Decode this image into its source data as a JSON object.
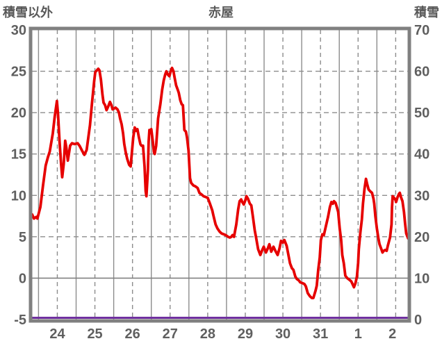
{
  "header": {
    "left_axis_title": "積雪以外",
    "chart_title": "赤屋",
    "right_axis_title": "積雪"
  },
  "chart_data": {
    "type": "line",
    "title": "赤屋",
    "left_axis": {
      "label": "積雪以外",
      "min": -5,
      "max": 30,
      "ticks": [
        30,
        25,
        20,
        15,
        10,
        5,
        0,
        -5
      ]
    },
    "right_axis": {
      "label": "積雪",
      "min": 0,
      "max": 70,
      "ticks": [
        70,
        60,
        50,
        40,
        30,
        20,
        10,
        0
      ]
    },
    "x_axis": {
      "day_labels": [
        "24",
        "25",
        "26",
        "27",
        "28",
        "29",
        "30",
        "31",
        "1",
        "2"
      ],
      "start_offset_days": -0.174,
      "span_days": 10,
      "solid_lines_at_day_boundaries": true,
      "dashed_lines_at_midday": true
    },
    "grid": {
      "horizontal_dashed_at": [
        25,
        20,
        15,
        10,
        5
      ],
      "horizontal_solid_at": [
        0
      ],
      "grid_on": true
    },
    "legend": "none",
    "series": [
      {
        "name": "main-line",
        "axis": "left",
        "color": "#e60000",
        "width": 3.8,
        "points": [
          [
            -0.17,
            7.7
          ],
          [
            -0.12,
            7.2
          ],
          [
            -0.06,
            7.4
          ],
          [
            -0.03,
            7.2
          ],
          [
            0.05,
            8.6
          ],
          [
            0.12,
            11.2
          ],
          [
            0.19,
            13.6
          ],
          [
            0.25,
            14.6
          ],
          [
            0.3,
            15.3
          ],
          [
            0.38,
            17.5
          ],
          [
            0.43,
            19.5
          ],
          [
            0.49,
            21.4
          ],
          [
            0.52,
            19.8
          ],
          [
            0.56,
            16.5
          ],
          [
            0.6,
            13.8
          ],
          [
            0.63,
            12.2
          ],
          [
            0.67,
            13.8
          ],
          [
            0.71,
            16.6
          ],
          [
            0.74,
            15.8
          ],
          [
            0.78,
            14.2
          ],
          [
            0.84,
            16.0
          ],
          [
            0.89,
            16.3
          ],
          [
            0.96,
            16.2
          ],
          [
            1.04,
            16.3
          ],
          [
            1.09,
            16.0
          ],
          [
            1.17,
            15.3
          ],
          [
            1.22,
            14.9
          ],
          [
            1.28,
            15.5
          ],
          [
            1.31,
            16.5
          ],
          [
            1.37,
            18.5
          ],
          [
            1.42,
            21.0
          ],
          [
            1.48,
            23.8
          ],
          [
            1.51,
            24.9
          ],
          [
            1.55,
            25.1
          ],
          [
            1.59,
            25.3
          ],
          [
            1.62,
            25.1
          ],
          [
            1.66,
            24.0
          ],
          [
            1.7,
            22.2
          ],
          [
            1.73,
            21.2
          ],
          [
            1.77,
            20.9
          ],
          [
            1.81,
            20.3
          ],
          [
            1.86,
            20.8
          ],
          [
            1.9,
            21.3
          ],
          [
            1.94,
            20.9
          ],
          [
            1.97,
            20.4
          ],
          [
            2.01,
            20.5
          ],
          [
            2.05,
            20.6
          ],
          [
            2.1,
            20.4
          ],
          [
            2.14,
            20.0
          ],
          [
            2.17,
            19.3
          ],
          [
            2.21,
            18.6
          ],
          [
            2.25,
            17.5
          ],
          [
            2.28,
            16.2
          ],
          [
            2.32,
            15.2
          ],
          [
            2.36,
            14.4
          ],
          [
            2.41,
            13.7
          ],
          [
            2.45,
            13.5
          ],
          [
            2.49,
            15.5
          ],
          [
            2.52,
            17.0
          ],
          [
            2.56,
            18.2
          ],
          [
            2.6,
            17.8
          ],
          [
            2.63,
            18.0
          ],
          [
            2.67,
            17.0
          ],
          [
            2.71,
            16.2
          ],
          [
            2.74,
            16.0
          ],
          [
            2.78,
            16.0
          ],
          [
            2.82,
            13.5
          ],
          [
            2.85,
            10.5
          ],
          [
            2.87,
            9.9
          ],
          [
            2.91,
            13.0
          ],
          [
            2.93,
            16.5
          ],
          [
            2.95,
            17.9
          ],
          [
            2.98,
            17.7
          ],
          [
            3.0,
            18.0
          ],
          [
            3.04,
            16.5
          ],
          [
            3.07,
            15.2
          ],
          [
            3.09,
            15.0
          ],
          [
            3.13,
            16.0
          ],
          [
            3.18,
            19.3
          ],
          [
            3.24,
            21.0
          ],
          [
            3.29,
            22.8
          ],
          [
            3.33,
            23.9
          ],
          [
            3.37,
            24.6
          ],
          [
            3.4,
            25.0
          ],
          [
            3.44,
            24.6
          ],
          [
            3.48,
            24.4
          ],
          [
            3.51,
            24.9
          ],
          [
            3.55,
            25.4
          ],
          [
            3.59,
            25.0
          ],
          [
            3.62,
            24.2
          ],
          [
            3.66,
            23.3
          ],
          [
            3.7,
            22.8
          ],
          [
            3.73,
            22.4
          ],
          [
            3.77,
            21.5
          ],
          [
            3.81,
            21.0
          ],
          [
            3.84,
            20.9
          ],
          [
            3.86,
            19.5
          ],
          [
            3.88,
            17.9
          ],
          [
            3.92,
            17.7
          ],
          [
            3.95,
            17.0
          ],
          [
            3.99,
            15.4
          ],
          [
            4.03,
            12.1
          ],
          [
            4.06,
            11.5
          ],
          [
            4.12,
            11.2
          ],
          [
            4.17,
            11.1
          ],
          [
            4.23,
            10.9
          ],
          [
            4.28,
            10.3
          ],
          [
            4.34,
            10.1
          ],
          [
            4.39,
            9.9
          ],
          [
            4.45,
            9.8
          ],
          [
            4.5,
            9.7
          ],
          [
            4.56,
            9.0
          ],
          [
            4.62,
            8.2
          ],
          [
            4.65,
            7.6
          ],
          [
            4.71,
            6.5
          ],
          [
            4.76,
            6.0
          ],
          [
            4.82,
            5.6
          ],
          [
            4.87,
            5.4
          ],
          [
            4.93,
            5.3
          ],
          [
            4.98,
            5.2
          ],
          [
            5.04,
            5.0
          ],
          [
            5.09,
            4.9
          ],
          [
            5.13,
            5.0
          ],
          [
            5.16,
            5.2
          ],
          [
            5.2,
            5.0
          ],
          [
            5.26,
            6.5
          ],
          [
            5.31,
            8.3
          ],
          [
            5.35,
            9.3
          ],
          [
            5.39,
            9.5
          ],
          [
            5.42,
            9.2
          ],
          [
            5.46,
            8.9
          ],
          [
            5.5,
            9.4
          ],
          [
            5.53,
            9.9
          ],
          [
            5.57,
            9.6
          ],
          [
            5.62,
            9.0
          ],
          [
            5.66,
            8.8
          ],
          [
            5.7,
            7.5
          ],
          [
            5.75,
            5.8
          ],
          [
            5.79,
            4.8
          ],
          [
            5.84,
            3.5
          ],
          [
            5.9,
            2.8
          ],
          [
            5.95,
            3.4
          ],
          [
            5.99,
            3.8
          ],
          [
            6.05,
            3.1
          ],
          [
            6.1,
            3.6
          ],
          [
            6.14,
            4.1
          ],
          [
            6.19,
            3.2
          ],
          [
            6.25,
            3.8
          ],
          [
            6.3,
            3.3
          ],
          [
            6.36,
            2.8
          ],
          [
            6.41,
            3.6
          ],
          [
            6.45,
            4.5
          ],
          [
            6.5,
            4.3
          ],
          [
            6.54,
            4.6
          ],
          [
            6.6,
            3.9
          ],
          [
            6.63,
            3.2
          ],
          [
            6.69,
            1.8
          ],
          [
            6.74,
            1.2
          ],
          [
            6.78,
            1.0
          ],
          [
            6.83,
            0.2
          ],
          [
            6.87,
            -0.1
          ],
          [
            6.93,
            -0.3
          ],
          [
            6.96,
            -0.5
          ],
          [
            7.02,
            -0.6
          ],
          [
            7.07,
            -0.7
          ],
          [
            7.11,
            -1.0
          ],
          [
            7.16,
            -1.8
          ],
          [
            7.22,
            -2.2
          ],
          [
            7.27,
            -2.4
          ],
          [
            7.31,
            -2.4
          ],
          [
            7.37,
            -1.5
          ],
          [
            7.4,
            -0.9
          ],
          [
            7.44,
            1.0
          ],
          [
            7.48,
            2.5
          ],
          [
            7.51,
            4.6
          ],
          [
            7.55,
            5.3
          ],
          [
            7.59,
            5.2
          ],
          [
            7.64,
            6.2
          ],
          [
            7.7,
            7.4
          ],
          [
            7.75,
            8.6
          ],
          [
            7.79,
            9.2
          ],
          [
            7.83,
            9.0
          ],
          [
            7.86,
            9.3
          ],
          [
            7.9,
            9.1
          ],
          [
            7.94,
            8.5
          ],
          [
            7.97,
            8.0
          ],
          [
            8.01,
            6.0
          ],
          [
            8.05,
            4.6
          ],
          [
            8.08,
            2.8
          ],
          [
            8.12,
            1.8
          ],
          [
            8.16,
            0.3
          ],
          [
            8.21,
            0.0
          ],
          [
            8.27,
            -0.2
          ],
          [
            8.32,
            -0.4
          ],
          [
            8.36,
            -0.8
          ],
          [
            8.39,
            -1.1
          ],
          [
            8.43,
            -0.6
          ],
          [
            8.47,
            0.2
          ],
          [
            8.5,
            1.8
          ],
          [
            8.52,
            3.5
          ],
          [
            8.56,
            5.5
          ],
          [
            8.6,
            7.1
          ],
          [
            8.63,
            9.0
          ],
          [
            8.67,
            10.8
          ],
          [
            8.71,
            12.0
          ],
          [
            8.74,
            11.4
          ],
          [
            8.78,
            10.7
          ],
          [
            8.82,
            10.5
          ],
          [
            8.87,
            10.3
          ],
          [
            8.91,
            9.6
          ],
          [
            8.93,
            9.0
          ],
          [
            8.96,
            7.5
          ],
          [
            9.0,
            6.0
          ],
          [
            9.04,
            4.8
          ],
          [
            9.07,
            4.1
          ],
          [
            9.11,
            3.6
          ],
          [
            9.15,
            3.1
          ],
          [
            9.18,
            3.3
          ],
          [
            9.22,
            3.4
          ],
          [
            9.26,
            3.3
          ],
          [
            9.29,
            3.9
          ],
          [
            9.33,
            4.6
          ],
          [
            9.35,
            4.9
          ],
          [
            9.39,
            6.5
          ],
          [
            9.4,
            8.5
          ],
          [
            9.42,
            9.9
          ],
          [
            9.46,
            9.7
          ],
          [
            9.5,
            9.4
          ],
          [
            9.51,
            9.2
          ],
          [
            9.55,
            9.8
          ],
          [
            9.59,
            10.2
          ],
          [
            9.61,
            10.3
          ],
          [
            9.64,
            9.8
          ],
          [
            9.68,
            9.3
          ],
          [
            9.72,
            8.0
          ],
          [
            9.75,
            6.6
          ],
          [
            9.78,
            5.4
          ],
          [
            9.83,
            4.8
          ]
        ]
      },
      {
        "name": "snow-line",
        "axis": "right",
        "color": "#7030a0",
        "width": 3,
        "constant_value": 0
      }
    ],
    "colors": {
      "grid": "#8c8c8c",
      "frame": "#808080",
      "text": "#5f5f5f",
      "background": "#ffffff",
      "red_series": "#e60000",
      "purple_series": "#7030a0"
    }
  }
}
